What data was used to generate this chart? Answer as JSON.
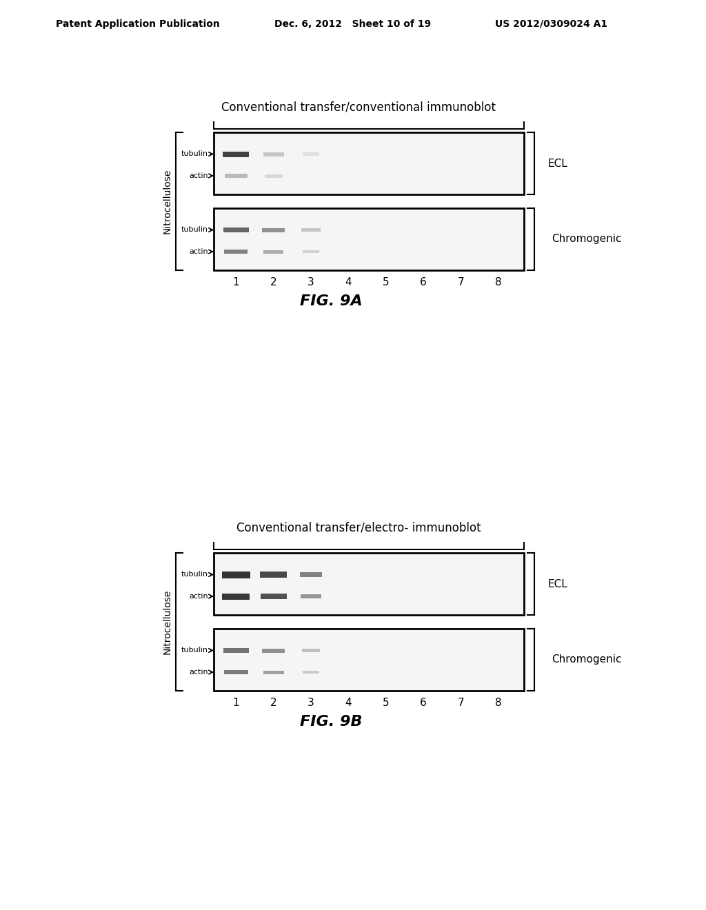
{
  "background_color": "#ffffff",
  "header_left": "Patent Application Publication",
  "header_mid": "Dec. 6, 2012   Sheet 10 of 19",
  "header_right": "US 2012/0309024 A1",
  "fig9a_title": "Conventional transfer/conventional immunoblot",
  "fig9b_title": "Conventional transfer/electro- immunoblot",
  "fig9a_label": "FIG. 9A",
  "fig9b_label": "FIG. 9B",
  "ecl_label": "ECL",
  "chromogenic_label": "Chromogenic",
  "nitrocellulose_label": "Nitrocellulose",
  "tubulin_label": "tubulin",
  "actin_label": "actin",
  "lane_labels": [
    "1",
    "2",
    "3",
    "4",
    "5",
    "6",
    "7",
    "8"
  ],
  "box_facecolor": "#f5f5f5",
  "box_edgecolor": "#000000"
}
